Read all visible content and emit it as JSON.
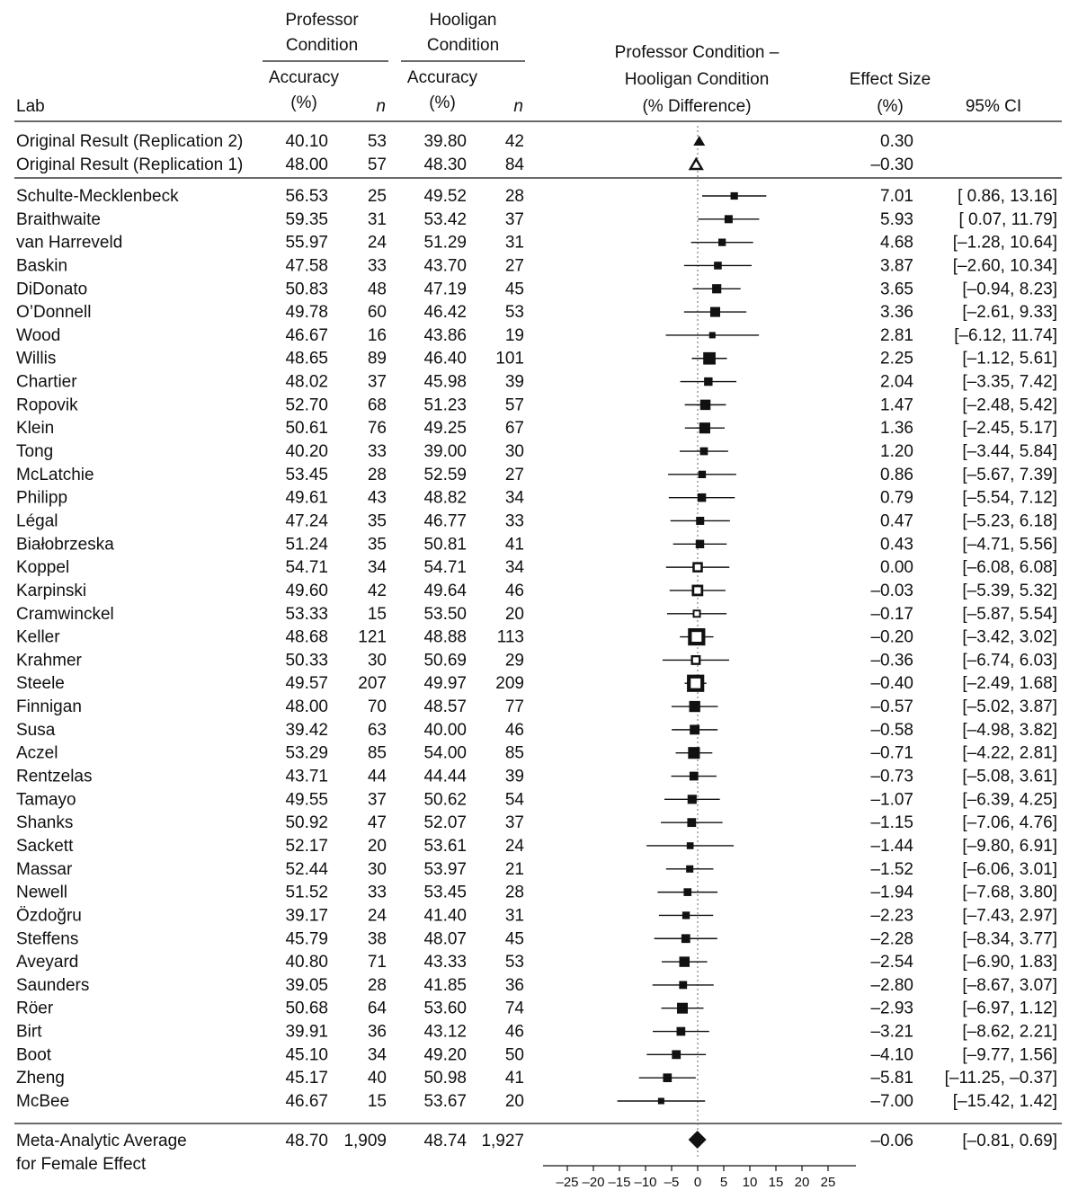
{
  "chart_data": {
    "type": "forest",
    "headers": {
      "lab": "Lab",
      "professor_group": [
        "Professor",
        "Condition"
      ],
      "hooligan_group": [
        "Hooligan",
        "Condition"
      ],
      "accuracy": [
        "Accuracy",
        "(%)"
      ],
      "n": "n",
      "difference": [
        "Professor Condition –",
        "Hooligan Condition",
        "(% Difference)"
      ],
      "effect_size": [
        "Effect Size",
        "(%)"
      ],
      "ci": "95% CI"
    },
    "original_results": [
      {
        "lab": "Original Result (Replication 2)",
        "prof_acc": "40.10",
        "prof_n": "53",
        "hool_acc": "39.80",
        "hool_n": "42",
        "effect_label": "0.30",
        "effect": 0.3,
        "marker": "filled-triangle"
      },
      {
        "lab": "Original Result (Replication 1)",
        "prof_acc": "48.00",
        "prof_n": "57",
        "hool_acc": "48.30",
        "hool_n": "84",
        "effect_label": "–0.30",
        "effect": -0.3,
        "marker": "open-triangle"
      }
    ],
    "labs": [
      {
        "lab": "Schulte-Mecklenbeck",
        "prof_acc": "56.53",
        "prof_n": "25",
        "hool_acc": "49.52",
        "hool_n": "28",
        "effect_label": "7.01",
        "ci_label": "[ 0.86, 13.16]",
        "effect": 7.01,
        "lo": 0.86,
        "hi": 13.16,
        "marker": "filled"
      },
      {
        "lab": "Braithwaite",
        "prof_acc": "59.35",
        "prof_n": "31",
        "hool_acc": "53.42",
        "hool_n": "37",
        "effect_label": "5.93",
        "ci_label": "[ 0.07, 11.79]",
        "effect": 5.93,
        "lo": 0.07,
        "hi": 11.79,
        "marker": "filled"
      },
      {
        "lab": "van Harreveld",
        "prof_acc": "55.97",
        "prof_n": "24",
        "hool_acc": "51.29",
        "hool_n": "31",
        "effect_label": "4.68",
        "ci_label": "[–1.28, 10.64]",
        "effect": 4.68,
        "lo": -1.28,
        "hi": 10.64,
        "marker": "filled"
      },
      {
        "lab": "Baskin",
        "prof_acc": "47.58",
        "prof_n": "33",
        "hool_acc": "43.70",
        "hool_n": "27",
        "effect_label": "3.87",
        "ci_label": "[–2.60, 10.34]",
        "effect": 3.87,
        "lo": -2.6,
        "hi": 10.34,
        "marker": "filled"
      },
      {
        "lab": "DiDonato",
        "prof_acc": "50.83",
        "prof_n": "48",
        "hool_acc": "47.19",
        "hool_n": "45",
        "effect_label": "3.65",
        "ci_label": "[–0.94, 8.23]",
        "effect": 3.65,
        "lo": -0.94,
        "hi": 8.23,
        "marker": "filled"
      },
      {
        "lab": "O’Donnell",
        "prof_acc": "49.78",
        "prof_n": "60",
        "hool_acc": "46.42",
        "hool_n": "53",
        "effect_label": "3.36",
        "ci_label": "[–2.61, 9.33]",
        "effect": 3.36,
        "lo": -2.61,
        "hi": 9.33,
        "marker": "filled"
      },
      {
        "lab": "Wood",
        "prof_acc": "46.67",
        "prof_n": "16",
        "hool_acc": "43.86",
        "hool_n": "19",
        "effect_label": "2.81",
        "ci_label": "[–6.12, 11.74]",
        "effect": 2.81,
        "lo": -6.12,
        "hi": 11.74,
        "marker": "filled"
      },
      {
        "lab": "Willis",
        "prof_acc": "48.65",
        "prof_n": "89",
        "hool_acc": "46.40",
        "hool_n": "101",
        "effect_label": "2.25",
        "ci_label": "[–1.12, 5.61]",
        "effect": 2.25,
        "lo": -1.12,
        "hi": 5.61,
        "marker": "filled"
      },
      {
        "lab": "Chartier",
        "prof_acc": "48.02",
        "prof_n": "37",
        "hool_acc": "45.98",
        "hool_n": "39",
        "effect_label": "2.04",
        "ci_label": "[–3.35, 7.42]",
        "effect": 2.04,
        "lo": -3.35,
        "hi": 7.42,
        "marker": "filled"
      },
      {
        "lab": "Ropovik",
        "prof_acc": "52.70",
        "prof_n": "68",
        "hool_acc": "51.23",
        "hool_n": "57",
        "effect_label": "1.47",
        "ci_label": "[–2.48, 5.42]",
        "effect": 1.47,
        "lo": -2.48,
        "hi": 5.42,
        "marker": "filled"
      },
      {
        "lab": "Klein",
        "prof_acc": "50.61",
        "prof_n": "76",
        "hool_acc": "49.25",
        "hool_n": "67",
        "effect_label": "1.36",
        "ci_label": "[–2.45, 5.17]",
        "effect": 1.36,
        "lo": -2.45,
        "hi": 5.17,
        "marker": "filled"
      },
      {
        "lab": "Tong",
        "prof_acc": "40.20",
        "prof_n": "33",
        "hool_acc": "39.00",
        "hool_n": "30",
        "effect_label": "1.20",
        "ci_label": "[–3.44, 5.84]",
        "effect": 1.2,
        "lo": -3.44,
        "hi": 5.84,
        "marker": "filled"
      },
      {
        "lab": "McLatchie",
        "prof_acc": "53.45",
        "prof_n": "28",
        "hool_acc": "52.59",
        "hool_n": "27",
        "effect_label": "0.86",
        "ci_label": "[–5.67, 7.39]",
        "effect": 0.86,
        "lo": -5.67,
        "hi": 7.39,
        "marker": "filled"
      },
      {
        "lab": "Philipp",
        "prof_acc": "49.61",
        "prof_n": "43",
        "hool_acc": "48.82",
        "hool_n": "34",
        "effect_label": "0.79",
        "ci_label": "[–5.54, 7.12]",
        "effect": 0.79,
        "lo": -5.54,
        "hi": 7.12,
        "marker": "filled"
      },
      {
        "lab": "Légal",
        "prof_acc": "47.24",
        "prof_n": "35",
        "hool_acc": "46.77",
        "hool_n": "33",
        "effect_label": "0.47",
        "ci_label": "[–5.23, 6.18]",
        "effect": 0.47,
        "lo": -5.23,
        "hi": 6.18,
        "marker": "filled"
      },
      {
        "lab": "Białobrzeska",
        "prof_acc": "51.24",
        "prof_n": "35",
        "hool_acc": "50.81",
        "hool_n": "41",
        "effect_label": "0.43",
        "ci_label": "[–4.71, 5.56]",
        "effect": 0.43,
        "lo": -4.71,
        "hi": 5.56,
        "marker": "filled"
      },
      {
        "lab": "Koppel",
        "prof_acc": "54.71",
        "prof_n": "34",
        "hool_acc": "54.71",
        "hool_n": "34",
        "effect_label": "0.00",
        "ci_label": "[–6.08, 6.08]",
        "effect": 0.0,
        "lo": -6.08,
        "hi": 6.08,
        "marker": "open"
      },
      {
        "lab": "Karpinski",
        "prof_acc": "49.60",
        "prof_n": "42",
        "hool_acc": "49.64",
        "hool_n": "46",
        "effect_label": "–0.03",
        "ci_label": "[–5.39, 5.32]",
        "effect": -0.03,
        "lo": -5.39,
        "hi": 5.32,
        "marker": "open"
      },
      {
        "lab": "Cramwinckel",
        "prof_acc": "53.33",
        "prof_n": "15",
        "hool_acc": "53.50",
        "hool_n": "20",
        "effect_label": "–0.17",
        "ci_label": "[–5.87, 5.54]",
        "effect": -0.17,
        "lo": -5.87,
        "hi": 5.54,
        "marker": "open"
      },
      {
        "lab": "Keller",
        "prof_acc": "48.68",
        "prof_n": "121",
        "hool_acc": "48.88",
        "hool_n": "113",
        "effect_label": "–0.20",
        "ci_label": "[–3.42, 3.02]",
        "effect": -0.2,
        "lo": -3.42,
        "hi": 3.02,
        "marker": "open"
      },
      {
        "lab": "Krahmer",
        "prof_acc": "50.33",
        "prof_n": "30",
        "hool_acc": "50.69",
        "hool_n": "29",
        "effect_label": "–0.36",
        "ci_label": "[–6.74, 6.03]",
        "effect": -0.36,
        "lo": -6.74,
        "hi": 6.03,
        "marker": "open"
      },
      {
        "lab": "Steele",
        "prof_acc": "49.57",
        "prof_n": "207",
        "hool_acc": "49.97",
        "hool_n": "209",
        "effect_label": "–0.40",
        "ci_label": "[–2.49, 1.68]",
        "effect": -0.4,
        "lo": -2.49,
        "hi": 1.68,
        "marker": "open"
      },
      {
        "lab": "Finnigan",
        "prof_acc": "48.00",
        "prof_n": "70",
        "hool_acc": "48.57",
        "hool_n": "77",
        "effect_label": "–0.57",
        "ci_label": "[–5.02, 3.87]",
        "effect": -0.57,
        "lo": -5.02,
        "hi": 3.87,
        "marker": "filled"
      },
      {
        "lab": "Susa",
        "prof_acc": "39.42",
        "prof_n": "63",
        "hool_acc": "40.00",
        "hool_n": "46",
        "effect_label": "–0.58",
        "ci_label": "[–4.98, 3.82]",
        "effect": -0.58,
        "lo": -4.98,
        "hi": 3.82,
        "marker": "filled"
      },
      {
        "lab": "Aczel",
        "prof_acc": "53.29",
        "prof_n": "85",
        "hool_acc": "54.00",
        "hool_n": "85",
        "effect_label": "–0.71",
        "ci_label": "[–4.22, 2.81]",
        "effect": -0.71,
        "lo": -4.22,
        "hi": 2.81,
        "marker": "filled"
      },
      {
        "lab": "Rentzelas",
        "prof_acc": "43.71",
        "prof_n": "44",
        "hool_acc": "44.44",
        "hool_n": "39",
        "effect_label": "–0.73",
        "ci_label": "[–5.08, 3.61]",
        "effect": -0.73,
        "lo": -5.08,
        "hi": 3.61,
        "marker": "filled"
      },
      {
        "lab": "Tamayo",
        "prof_acc": "49.55",
        "prof_n": "37",
        "hool_acc": "50.62",
        "hool_n": "54",
        "effect_label": "–1.07",
        "ci_label": "[–6.39, 4.25]",
        "effect": -1.07,
        "lo": -6.39,
        "hi": 4.25,
        "marker": "filled"
      },
      {
        "lab": "Shanks",
        "prof_acc": "50.92",
        "prof_n": "47",
        "hool_acc": "52.07",
        "hool_n": "37",
        "effect_label": "–1.15",
        "ci_label": "[–7.06, 4.76]",
        "effect": -1.15,
        "lo": -7.06,
        "hi": 4.76,
        "marker": "filled"
      },
      {
        "lab": "Sackett",
        "prof_acc": "52.17",
        "prof_n": "20",
        "hool_acc": "53.61",
        "hool_n": "24",
        "effect_label": "–1.44",
        "ci_label": "[–9.80, 6.91]",
        "effect": -1.44,
        "lo": -9.8,
        "hi": 6.91,
        "marker": "filled"
      },
      {
        "lab": "Massar",
        "prof_acc": "52.44",
        "prof_n": "30",
        "hool_acc": "53.97",
        "hool_n": "21",
        "effect_label": "–1.52",
        "ci_label": "[–6.06, 3.01]",
        "effect": -1.52,
        "lo": -6.06,
        "hi": 3.01,
        "marker": "filled"
      },
      {
        "lab": "Newell",
        "prof_acc": "51.52",
        "prof_n": "33",
        "hool_acc": "53.45",
        "hool_n": "28",
        "effect_label": "–1.94",
        "ci_label": "[–7.68, 3.80]",
        "effect": -1.94,
        "lo": -7.68,
        "hi": 3.8,
        "marker": "filled"
      },
      {
        "lab": "Özdoğru",
        "prof_acc": "39.17",
        "prof_n": "24",
        "hool_acc": "41.40",
        "hool_n": "31",
        "effect_label": "–2.23",
        "ci_label": "[–7.43, 2.97]",
        "effect": -2.23,
        "lo": -7.43,
        "hi": 2.97,
        "marker": "filled"
      },
      {
        "lab": "Steffens",
        "prof_acc": "45.79",
        "prof_n": "38",
        "hool_acc": "48.07",
        "hool_n": "45",
        "effect_label": "–2.28",
        "ci_label": "[–8.34, 3.77]",
        "effect": -2.28,
        "lo": -8.34,
        "hi": 3.77,
        "marker": "filled"
      },
      {
        "lab": "Aveyard",
        "prof_acc": "40.80",
        "prof_n": "71",
        "hool_acc": "43.33",
        "hool_n": "53",
        "effect_label": "–2.54",
        "ci_label": "[–6.90, 1.83]",
        "effect": -2.54,
        "lo": -6.9,
        "hi": 1.83,
        "marker": "filled"
      },
      {
        "lab": "Saunders",
        "prof_acc": "39.05",
        "prof_n": "28",
        "hool_acc": "41.85",
        "hool_n": "36",
        "effect_label": "–2.80",
        "ci_label": "[–8.67, 3.07]",
        "effect": -2.8,
        "lo": -8.67,
        "hi": 3.07,
        "marker": "filled"
      },
      {
        "lab": "Röer",
        "prof_acc": "50.68",
        "prof_n": "64",
        "hool_acc": "53.60",
        "hool_n": "74",
        "effect_label": "–2.93",
        "ci_label": "[–6.97, 1.12]",
        "effect": -2.93,
        "lo": -6.97,
        "hi": 1.12,
        "marker": "filled"
      },
      {
        "lab": "Birt",
        "prof_acc": "39.91",
        "prof_n": "36",
        "hool_acc": "43.12",
        "hool_n": "46",
        "effect_label": "–3.21",
        "ci_label": "[–8.62, 2.21]",
        "effect": -3.21,
        "lo": -8.62,
        "hi": 2.21,
        "marker": "filled"
      },
      {
        "lab": "Boot",
        "prof_acc": "45.10",
        "prof_n": "34",
        "hool_acc": "49.20",
        "hool_n": "50",
        "effect_label": "–4.10",
        "ci_label": "[–9.77, 1.56]",
        "effect": -4.1,
        "lo": -9.77,
        "hi": 1.56,
        "marker": "filled"
      },
      {
        "lab": "Zheng",
        "prof_acc": "45.17",
        "prof_n": "40",
        "hool_acc": "50.98",
        "hool_n": "41",
        "effect_label": "–5.81",
        "ci_label": "[–11.25, –0.37]",
        "effect": -5.81,
        "lo": -11.25,
        "hi": -0.37,
        "marker": "filled"
      },
      {
        "lab": "McBee",
        "prof_acc": "46.67",
        "prof_n": "15",
        "hool_acc": "53.67",
        "hool_n": "20",
        "effect_label": "–7.00",
        "ci_label": "[–15.42, 1.42]",
        "effect": -7.0,
        "lo": -15.42,
        "hi": 1.42,
        "marker": "filled"
      }
    ],
    "meta": {
      "lab": [
        "Meta-Analytic Average",
        "for Female Effect"
      ],
      "prof_acc": "48.70",
      "prof_n": "1,909",
      "hool_acc": "48.74",
      "hool_n": "1,927",
      "effect_label": "–0.06",
      "ci_label": "[–0.81, 0.69]",
      "effect": -0.06,
      "lo": -0.81,
      "hi": 0.69,
      "marker": "diamond"
    },
    "x_axis": {
      "xlim": [
        -30,
        30
      ],
      "ticks": [
        -25,
        -20,
        -15,
        -10,
        -5,
        0,
        5,
        10,
        15,
        20,
        25
      ],
      "tick_labels": [
        "–25",
        "–20",
        "–15",
        "–10",
        "–5",
        "0",
        "5",
        "10",
        "15",
        "20",
        "25"
      ],
      "reference_line": 0
    }
  }
}
